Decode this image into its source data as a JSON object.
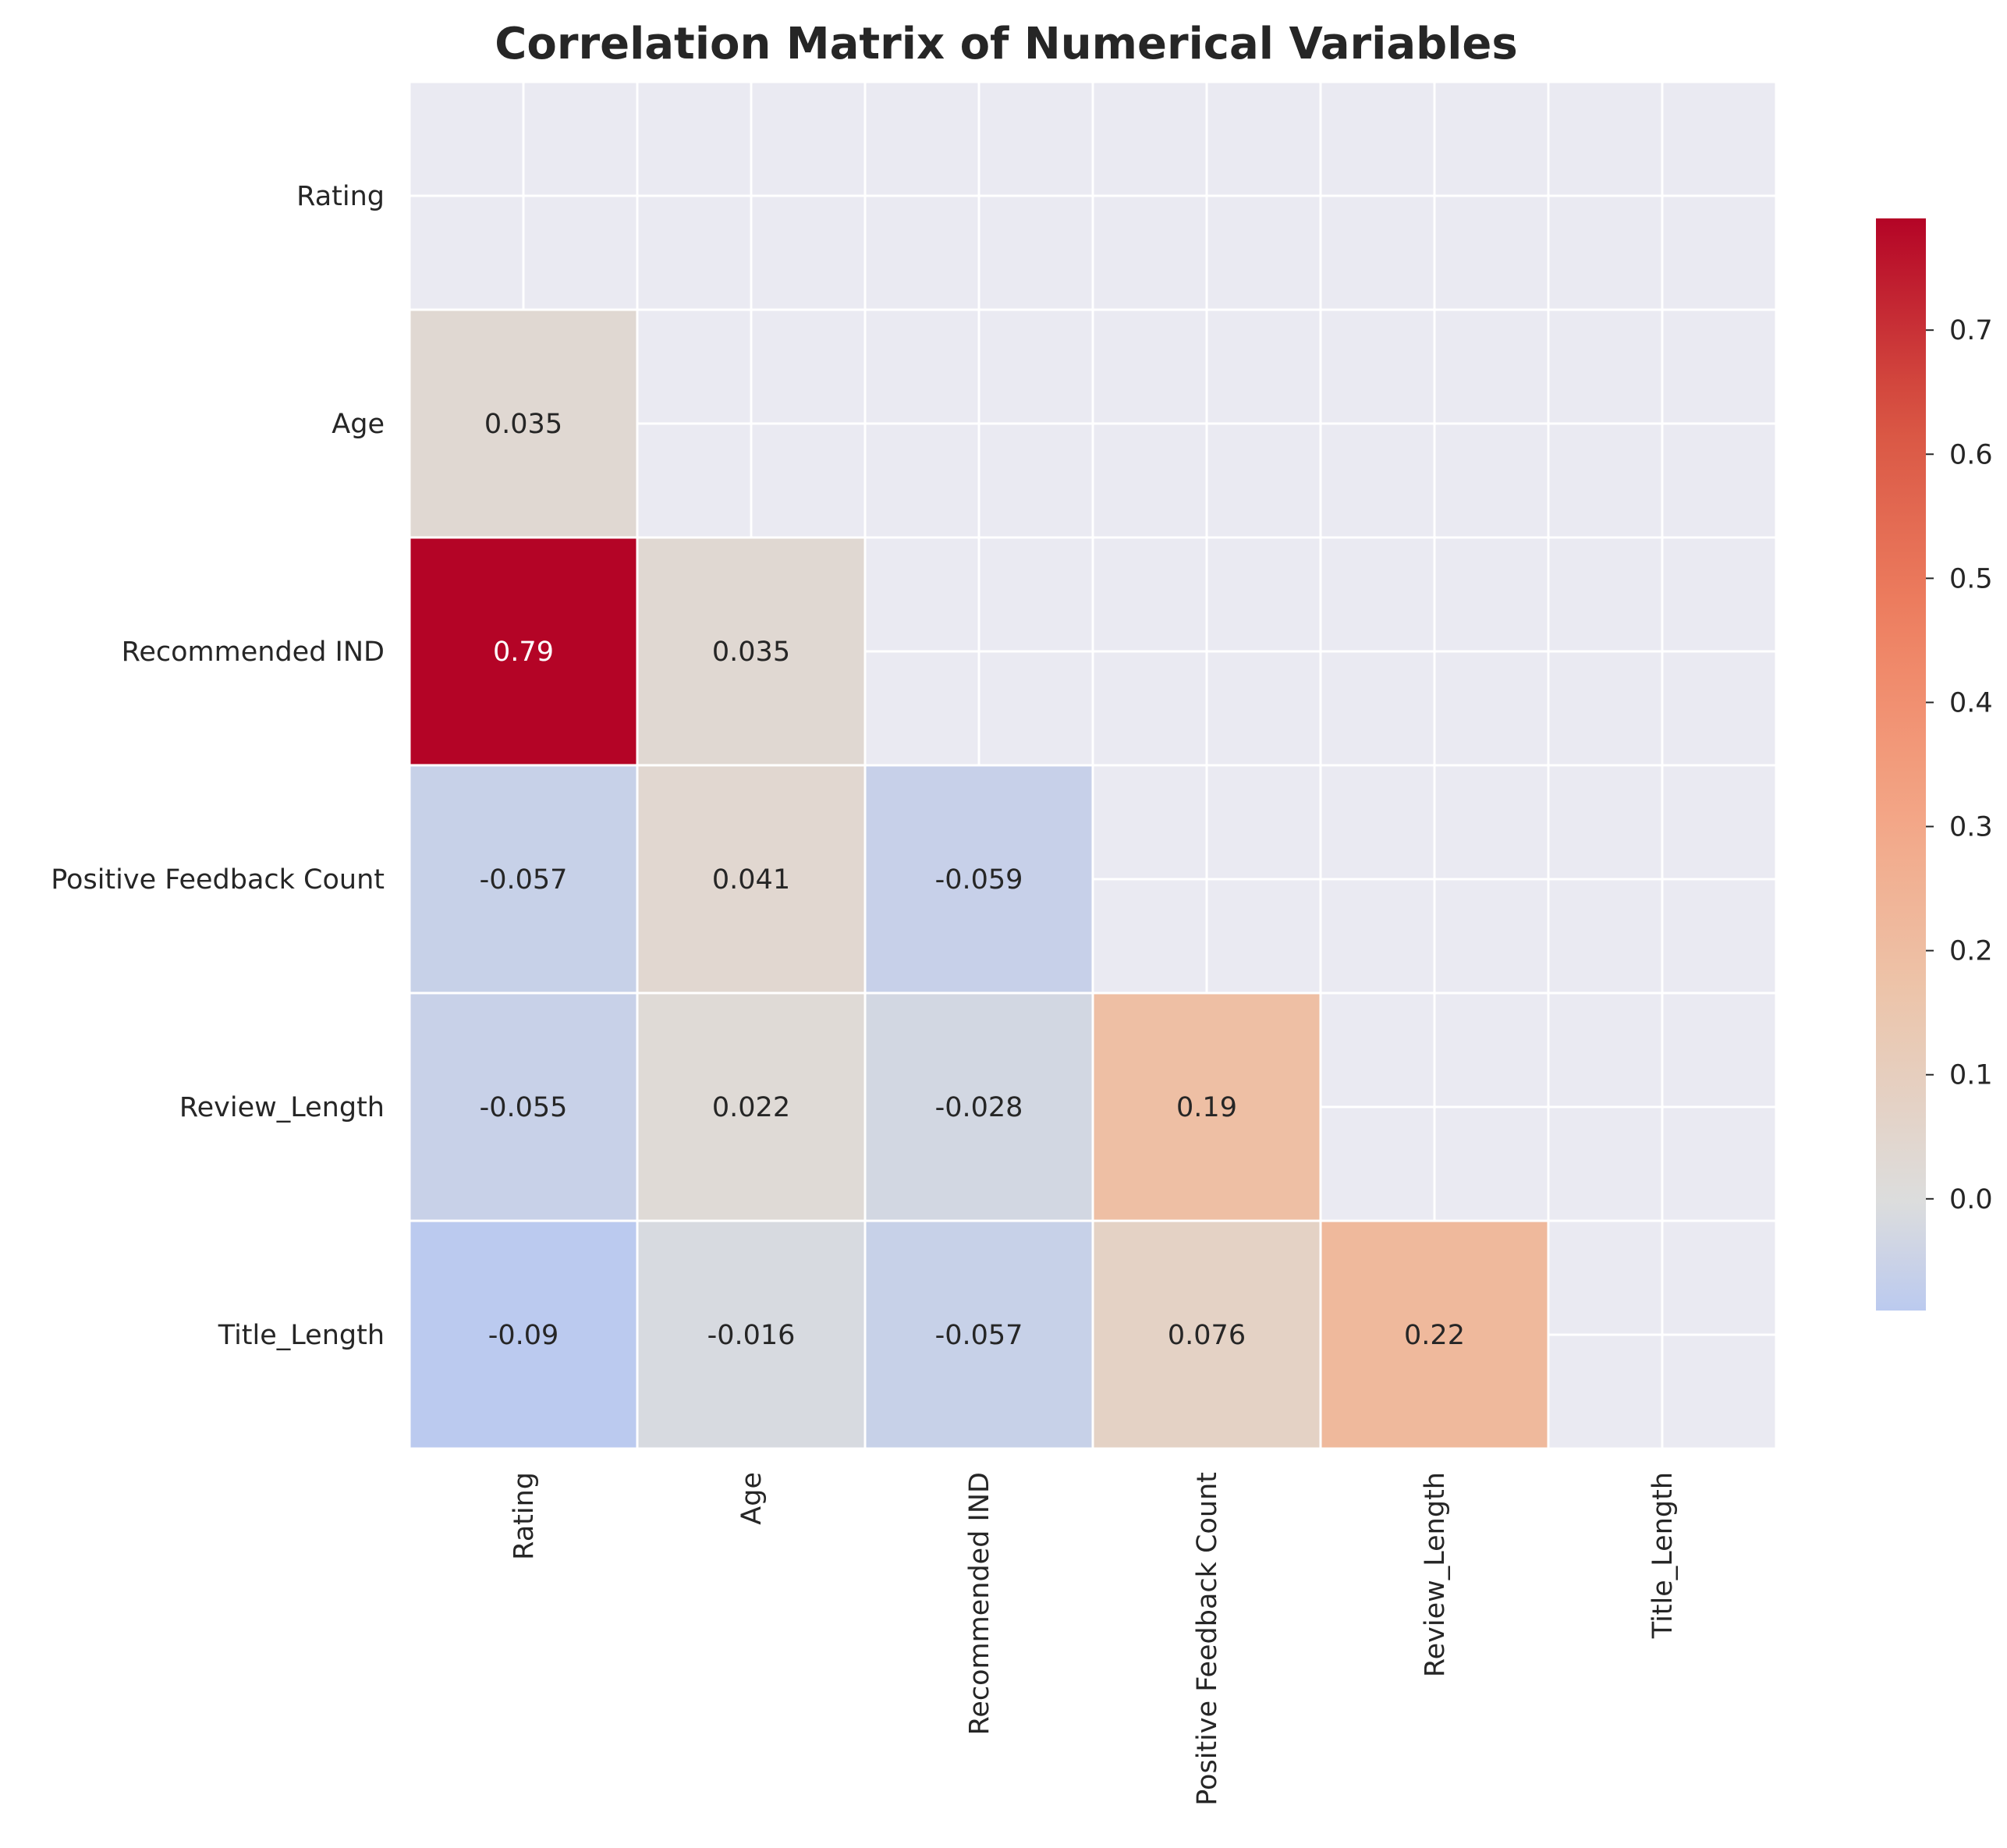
{
  "chart_data": {
    "type": "heatmap",
    "title": "Correlation Matrix of Numerical Variables",
    "variables": [
      "Rating",
      "Age",
      "Recommended IND",
      "Positive Feedback Count",
      "Review_Length",
      "Title_Length"
    ],
    "mask": "upper-triangle-including-diagonal",
    "matrix": [
      [
        null,
        null,
        null,
        null,
        null,
        null
      ],
      [
        0.035,
        null,
        null,
        null,
        null,
        null
      ],
      [
        0.79,
        0.035,
        null,
        null,
        null,
        null
      ],
      [
        -0.057,
        0.041,
        -0.059,
        null,
        null,
        null
      ],
      [
        -0.055,
        0.022,
        -0.028,
        0.19,
        null,
        null
      ],
      [
        -0.09,
        -0.016,
        -0.057,
        0.076,
        0.22,
        null
      ]
    ],
    "annotations": [
      [
        "",
        "",
        "",
        "",
        "",
        ""
      ],
      [
        "0.035",
        "",
        "",
        "",
        "",
        ""
      ],
      [
        "0.79",
        "0.035",
        "",
        "",
        "",
        ""
      ],
      [
        "-0.057",
        "0.041",
        "-0.059",
        "",
        "",
        ""
      ],
      [
        "-0.055",
        "0.022",
        "-0.028",
        "0.19",
        "",
        ""
      ],
      [
        "-0.09",
        "-0.016",
        "-0.057",
        "0.076",
        "0.22",
        ""
      ]
    ],
    "colormap": "coolwarm",
    "center": 0,
    "vmin": -0.09,
    "vmax": 0.79,
    "colorbar_ticks": [
      0.0,
      0.1,
      0.2,
      0.3,
      0.4,
      0.5,
      0.6,
      0.7
    ],
    "colorbar_tick_labels": [
      "0.0",
      "0.1",
      "0.2",
      "0.3",
      "0.4",
      "0.5",
      "0.6",
      "0.7"
    ],
    "grid": true
  },
  "colors": {
    "background": "#ffffff",
    "axes_face": "#eaeaf2",
    "grid": "#ffffff",
    "cell_border": "#ffffff"
  }
}
